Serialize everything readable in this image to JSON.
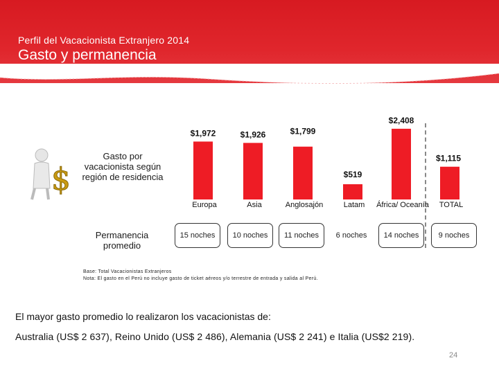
{
  "header": {
    "subtitle": "Perfil del Vacacionista Extranjero 2014",
    "title": "Gasto y permanencia",
    "color": "#d71a21"
  },
  "left_labels": {
    "gasto": "Gasto por vacacionista según región de residencia",
    "permanencia": "Permanencia promedio"
  },
  "chart_data": {
    "type": "bar",
    "title": "",
    "xlabel": "",
    "ylabel": "",
    "categories": [
      "Europa",
      "Asia",
      "Anglosajón",
      "Latam",
      "África/ Oceanía",
      "TOTAL"
    ],
    "values": [
      1972,
      1926,
      1799,
      519,
      2408,
      1115
    ],
    "value_labels": [
      "$1,972",
      "$1,926",
      "$1,799",
      "$519",
      "$2,408",
      "$1,115"
    ],
    "ylim": [
      0,
      2500
    ],
    "bar_color": "#ee1c25",
    "grid": false
  },
  "permanencia": [
    {
      "region": "Europa",
      "value": "15 noches",
      "boxed": true
    },
    {
      "region": "Asia",
      "value": "10 noches",
      "boxed": true
    },
    {
      "region": "Anglosajón",
      "value": "11 noches",
      "boxed": true
    },
    {
      "region": "Latam",
      "value": "6 noches",
      "boxed": false
    },
    {
      "region": "África/ Oceanía",
      "value": "14 noches",
      "boxed": true
    },
    {
      "region": "TOTAL",
      "value": "9 noches",
      "boxed": true
    }
  ],
  "notes": {
    "line1": "Base: Total Vacacionistas Extranjeros",
    "line2": "Nota: El gasto en el Perú no incluye gasto de ticket aéreos y/o terrestre de entrada y salida al Perú."
  },
  "conclusion": "El mayor gasto promedio lo realizaron los vacacionistas de:",
  "highlight": "Australia (US$ 2 637), Reino Unido (US$ 2 486),  Alemania (US$ 2 241) e Italia (US$2 219).",
  "page_number": "24"
}
